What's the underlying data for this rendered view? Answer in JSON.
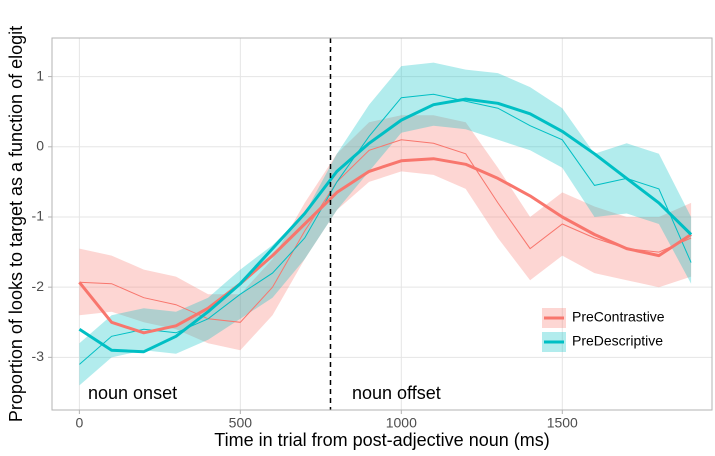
{
  "chart_data": {
    "type": "line",
    "x_label": "Time in trial from post-adjective noun (ms)",
    "y_label": "Proportion of looks to target as a function of elogit",
    "x": [
      0,
      100,
      200,
      300,
      400,
      500,
      600,
      700,
      800,
      900,
      1000,
      1100,
      1200,
      1300,
      1400,
      1500,
      1600,
      1700,
      1800,
      1900
    ],
    "series": [
      {
        "name": "PreContrastive",
        "color": "#F8766D",
        "fit": [
          -1.93,
          -2.5,
          -2.65,
          -2.55,
          -2.3,
          -1.95,
          -1.55,
          -1.1,
          -0.65,
          -0.35,
          -0.2,
          -0.17,
          -0.25,
          -0.45,
          -0.7,
          -1.0,
          -1.25,
          -1.45,
          -1.55,
          -1.25
        ],
        "observed": [
          -1.93,
          -1.95,
          -2.15,
          -2.25,
          -2.45,
          -2.5,
          -2.0,
          -1.2,
          -0.5,
          -0.05,
          0.1,
          0.05,
          -0.1,
          -0.8,
          -1.45,
          -1.1,
          -1.3,
          -1.45,
          -1.5,
          -1.3
        ],
        "lower": [
          -2.4,
          -2.35,
          -2.5,
          -2.6,
          -2.8,
          -2.9,
          -2.4,
          -1.6,
          -0.9,
          -0.5,
          -0.35,
          -0.4,
          -0.6,
          -1.3,
          -1.9,
          -1.55,
          -1.8,
          -1.9,
          -2.0,
          -1.85
        ],
        "upper": [
          -1.45,
          -1.55,
          -1.75,
          -1.85,
          -2.1,
          -2.1,
          -1.6,
          -0.8,
          -0.1,
          0.35,
          0.45,
          0.45,
          0.35,
          -0.3,
          -1.0,
          -0.65,
          -0.85,
          -1.0,
          -1.0,
          -0.8
        ]
      },
      {
        "name": "PreDescriptive",
        "color": "#00BFC4",
        "fit": [
          -2.6,
          -2.9,
          -2.92,
          -2.7,
          -2.35,
          -1.95,
          -1.45,
          -0.95,
          -0.35,
          0.05,
          0.38,
          0.6,
          0.68,
          0.62,
          0.47,
          0.22,
          -0.1,
          -0.45,
          -0.8,
          -1.25
        ],
        "observed": [
          -3.1,
          -2.7,
          -2.6,
          -2.65,
          -2.45,
          -2.1,
          -1.8,
          -1.3,
          -0.5,
          0.15,
          0.7,
          0.75,
          0.65,
          0.55,
          0.3,
          0.1,
          -0.55,
          -0.45,
          -0.6,
          -1.65
        ],
        "lower": [
          -3.4,
          -3.0,
          -2.9,
          -2.95,
          -2.75,
          -2.45,
          -2.15,
          -1.6,
          -0.9,
          -0.35,
          0.2,
          0.3,
          0.25,
          0.1,
          -0.05,
          -0.3,
          -1.0,
          -0.95,
          -1.1,
          -1.95
        ],
        "upper": [
          -2.8,
          -2.4,
          -2.3,
          -2.35,
          -2.15,
          -1.75,
          -1.4,
          -0.95,
          -0.1,
          0.6,
          1.15,
          1.2,
          1.1,
          1.05,
          0.85,
          0.55,
          -0.1,
          0.05,
          -0.1,
          -1.0
        ]
      }
    ],
    "reference_x": 780,
    "annotations": [
      "noun onset",
      "noun offset"
    ],
    "xlim": [
      -85,
      1965
    ],
    "ylim": [
      -3.75,
      1.55
    ],
    "xticks": [
      0,
      500,
      1000,
      1500
    ],
    "yticks": [
      -3,
      -2,
      -1,
      0,
      1
    ],
    "grid": true,
    "legend_position": "bottom-right"
  }
}
